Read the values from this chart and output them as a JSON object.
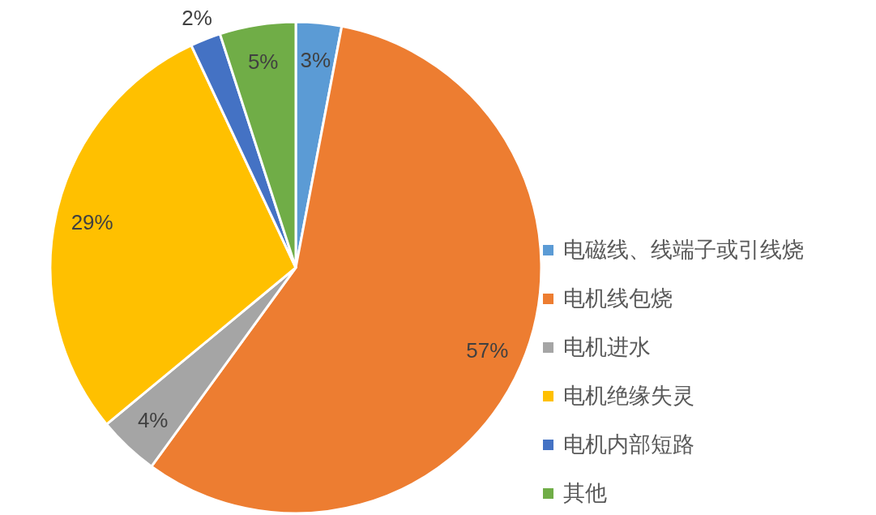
{
  "chart_data": {
    "type": "pie",
    "categories": [
      "电磁线、线端子或引线烧",
      "电机线包烧",
      "电机进水",
      "电机绝缘失灵",
      "电机内部短路",
      "其他"
    ],
    "values": [
      3,
      57,
      4,
      29,
      2,
      5
    ],
    "colors": [
      "#5b9bd5",
      "#ed7d31",
      "#a5a5a5",
      "#ffc000",
      "#4472c4",
      "#70ad47"
    ],
    "value_labels": [
      "3%",
      "57%",
      "4%",
      "29%",
      "2%",
      "5%"
    ],
    "legend": "right"
  }
}
